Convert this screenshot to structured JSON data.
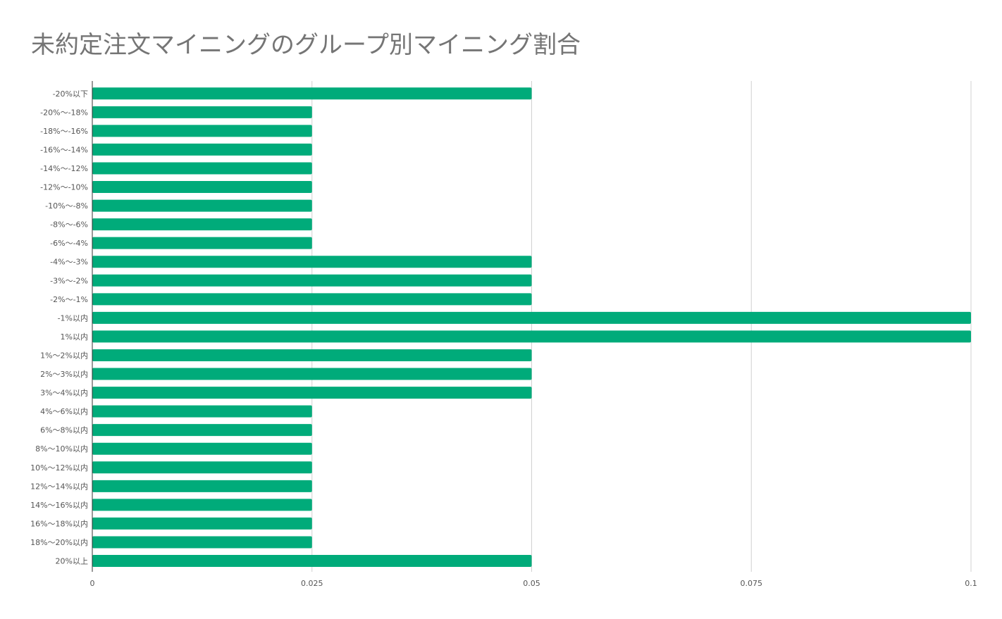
{
  "chart_data": {
    "type": "bar",
    "orientation": "horizontal",
    "title": "未約定注文マイニングのグループ別マイニング割合",
    "xlabel": "",
    "ylabel": "",
    "categories": [
      "-20%以下",
      "-20%〜-18%",
      "-18%〜-16%",
      "-16%〜-14%",
      "-14%〜-12%",
      "-12%〜-10%",
      "-10%〜-8%",
      "-8%〜-6%",
      "-6%〜-4%",
      "-4%〜-3%",
      "-3%〜-2%",
      "-2%〜-1%",
      "-1%以内",
      "1%以内",
      "1%〜2%以内",
      "2%〜3%以内",
      "3%〜4%以内",
      "4%〜6%以内",
      "6%〜8%以内",
      "8%〜10%以内",
      "10%〜12%以内",
      "12%〜14%以内",
      "14%〜16%以内",
      "16%〜18%以内",
      "18%〜20%以内",
      "20%以上"
    ],
    "values": [
      0.05,
      0.025,
      0.025,
      0.025,
      0.025,
      0.025,
      0.025,
      0.025,
      0.025,
      0.05,
      0.05,
      0.05,
      0.1,
      0.1,
      0.05,
      0.05,
      0.05,
      0.025,
      0.025,
      0.025,
      0.025,
      0.025,
      0.025,
      0.025,
      0.025,
      0.05
    ],
    "xlim": [
      0,
      0.1
    ],
    "xticks": [
      "0",
      "0.025",
      "0.05",
      "0.075",
      "0.1"
    ],
    "grid": true,
    "legend": "none",
    "colors": {
      "bar": "#00ab7a",
      "grid": "#d0d0d0",
      "axis": "#333333",
      "title": "#757575",
      "label": "#555555"
    }
  }
}
